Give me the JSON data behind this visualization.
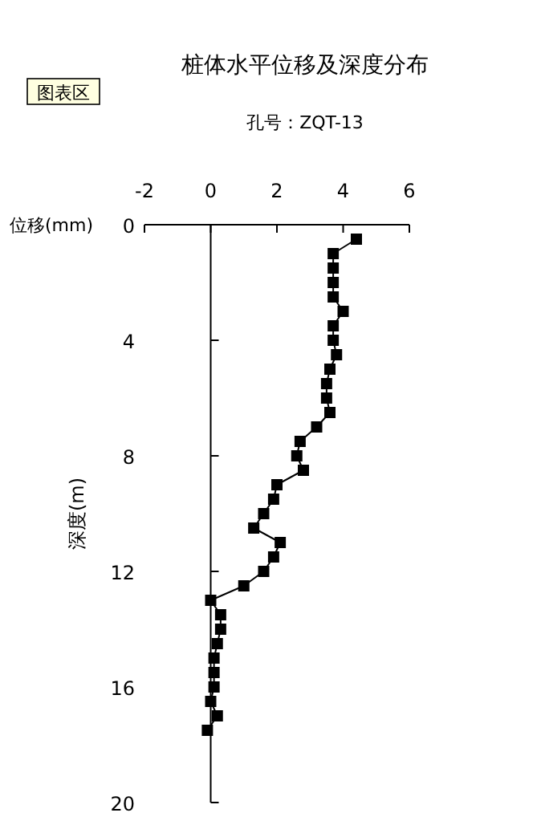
{
  "chart_data": {
    "type": "line",
    "title": "桩体水平位移及深度分布",
    "subtitle": "孔号：ZQT-13",
    "xlabel": "位移(mm)",
    "ylabel": "深度(m)",
    "annotations": [
      "图表区"
    ],
    "marker": "square",
    "line_style": "solid",
    "series": [
      {
        "color": "#000000",
        "x": [
          4.4,
          3.7,
          3.7,
          3.7,
          3.7,
          4.0,
          3.7,
          3.7,
          3.8,
          3.6,
          3.5,
          3.5,
          3.6,
          3.2,
          2.7,
          2.6,
          2.8,
          2.0,
          1.9,
          1.6,
          1.3,
          2.1,
          1.9,
          1.6,
          1.0,
          0.0,
          0.3,
          0.3,
          0.2,
          0.1,
          0.1,
          0.1,
          0.0,
          0.2,
          -0.1
        ],
        "values": [
          0.5,
          1,
          1.5,
          2,
          2.5,
          3,
          3.5,
          4,
          4.5,
          5,
          5.5,
          6,
          6.5,
          7,
          7.5,
          8,
          8.5,
          9,
          9.5,
          10,
          10.5,
          11,
          11.5,
          12,
          12.5,
          13,
          13.5,
          14,
          14.5,
          15,
          15.5,
          16,
          16.5,
          17,
          17.5
        ]
      }
    ],
    "xlim": [
      -2,
      6
    ],
    "xticks": [
      -2,
      0,
      2,
      4,
      6
    ],
    "ylim": [
      20,
      0
    ],
    "yticks": [
      0,
      4,
      8,
      12,
      16,
      20
    ]
  }
}
